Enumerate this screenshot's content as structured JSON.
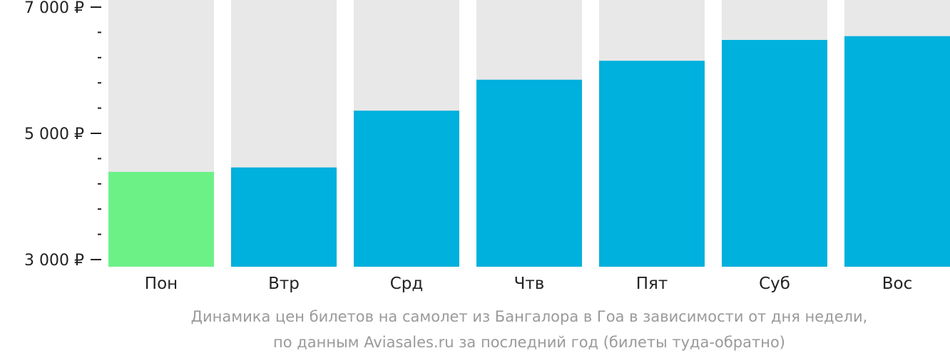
{
  "chart_data": {
    "type": "bar",
    "categories": [
      "Пон",
      "Втр",
      "Срд",
      "Чтв",
      "Пят",
      "Суб",
      "Вос"
    ],
    "values": [
      4390,
      4460,
      5360,
      5850,
      6150,
      6480,
      6540
    ],
    "ylim": [
      3000,
      7000
    ],
    "y_ticks": [
      {
        "value": 3000,
        "label": "3 000 ₽"
      },
      {
        "value": 5000,
        "label": "5 000 ₽"
      },
      {
        "value": 7000,
        "label": "7 000 ₽"
      }
    ],
    "y_minor_step": 400,
    "highlight_index": 0,
    "colors": {
      "bar": "#00b0dd",
      "highlight": "#6cf187",
      "background": "#e8e8e8",
      "axis": "#222222",
      "caption": "#9a9a9a"
    },
    "caption": {
      "line1": "Динамика цен билетов на самолет из Бангалора в Гоа в зависимости от дня недели,",
      "line2": "по данным Aviasales.ru за последний год (билеты туда-обратно)"
    }
  }
}
